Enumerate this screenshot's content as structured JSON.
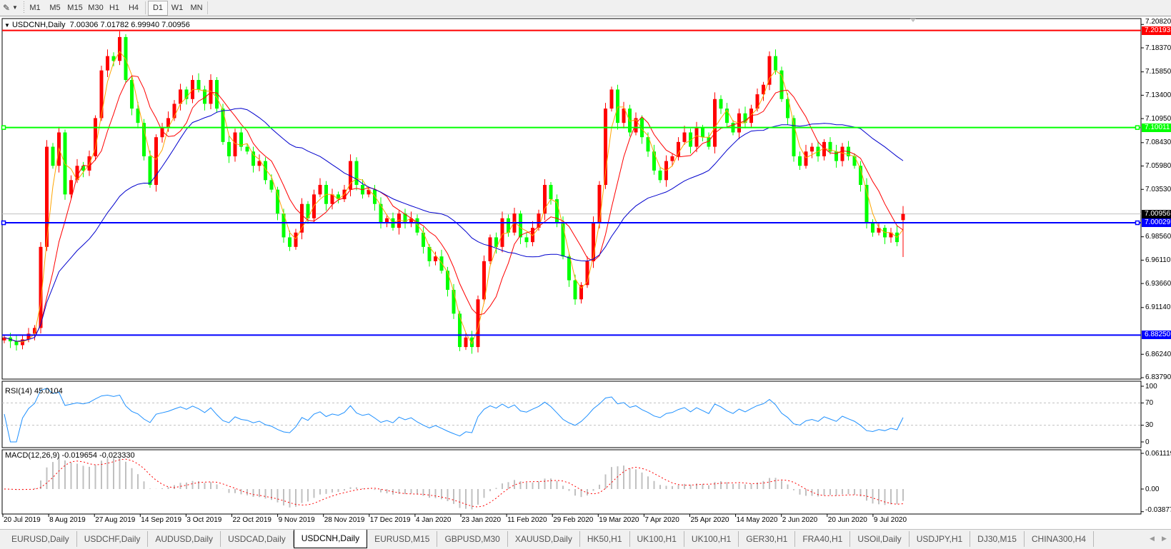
{
  "toolbar": {
    "tools_icon": "line-tools-icon",
    "timeframes": [
      "M1",
      "M5",
      "M15",
      "M30",
      "H1",
      "H4",
      "D1",
      "W1",
      "MN"
    ],
    "active_timeframe": "D1"
  },
  "chart": {
    "header": "USDCNH,Daily  7.00306 7.01782 6.99940 7.00956",
    "rsi_label": "RSI(14) 45.0104",
    "macd_label": "MACD(12,26,9) -0.019654 -0.023330"
  },
  "chart_data": {
    "type": "candlestick",
    "symbol": "USDCNH",
    "timeframe": "Daily",
    "last_bar": {
      "open": 7.00306,
      "high": 7.01782,
      "low": 6.9994,
      "close": 7.00956
    },
    "closes_approx": [
      6.88,
      6.876,
      6.872,
      6.878,
      6.884,
      6.89,
      6.975,
      7.08,
      7.06,
      7.095,
      7.03,
      7.045,
      7.06,
      7.055,
      7.07,
      7.11,
      7.16,
      7.175,
      7.17,
      7.195,
      7.15,
      7.12,
      7.105,
      7.07,
      7.04,
      7.09,
      7.1,
      7.11,
      7.125,
      7.14,
      7.13,
      7.15,
      7.14,
      7.125,
      7.15,
      7.12,
      7.085,
      7.07,
      7.095,
      7.08,
      7.075,
      7.06,
      7.065,
      7.045,
      7.035,
      7.01,
      6.985,
      6.975,
      6.99,
      7.02,
      7.005,
      7.03,
      7.04,
      7.02,
      7.03,
      7.025,
      7.035,
      7.065,
      7.04,
      7.03,
      7.035,
      7.02,
      7.0,
      7.005,
      6.995,
      7.01,
      7.0,
      7.005,
      6.99,
      6.975,
      6.96,
      6.965,
      6.95,
      6.93,
      6.905,
      6.87,
      6.88,
      6.87,
      6.92,
      6.96,
      6.985,
      6.975,
      7.005,
      6.99,
      7.01,
      6.985,
      6.98,
      6.995,
      7.01,
      7.04,
      7.025,
      7.0,
      6.965,
      6.94,
      6.92,
      6.935,
      6.96,
      7.0,
      7.04,
      7.12,
      7.14,
      7.105,
      7.12,
      7.095,
      7.11,
      7.09,
      7.075,
      7.055,
      7.045,
      7.065,
      7.07,
      7.085,
      7.095,
      7.08,
      7.1,
      7.09,
      7.08,
      7.13,
      7.12,
      7.105,
      7.095,
      7.115,
      7.105,
      7.12,
      7.135,
      7.145,
      7.175,
      7.16,
      7.13,
      7.11,
      7.07,
      7.06,
      7.075,
      7.08,
      7.07,
      7.085,
      7.075,
      7.065,
      7.08,
      7.07,
      7.06,
      7.04,
      7.0,
      6.99,
      6.995,
      6.985,
      6.99,
      6.98,
      7.00956
    ],
    "bull_color": "#ff0000",
    "bear_color": "#00ff00",
    "moving_averages": [
      {
        "color": "#ffa500"
      },
      {
        "color": "#ff0000"
      },
      {
        "color": "#0000cd"
      }
    ],
    "ylim": [
      6.8379,
      7.2082
    ],
    "y_ticks": [
      "7.20820",
      "7.18370",
      "7.15850",
      "7.13400",
      "7.10950",
      "7.08430",
      "7.05980",
      "7.03530",
      "6.98560",
      "6.96110",
      "6.93660",
      "6.91140",
      "6.86240",
      "6.83790"
    ],
    "horizontal_levels": [
      {
        "price": "7.20193",
        "color": "#ff0000",
        "handles": false
      },
      {
        "price": "7.10011",
        "color": "#00ff00",
        "handles": true
      },
      {
        "price": "7.00029",
        "color": "#0000ff",
        "handles": true
      },
      {
        "price": "6.88250",
        "color": "#0000ff",
        "handles": false
      }
    ],
    "bid_line": {
      "price": "7.00956",
      "color": "#c0c0c0"
    },
    "x_ticks": [
      "20 Jul 2019",
      "8 Aug 2019",
      "27 Aug 2019",
      "14 Sep 2019",
      "3 Oct 2019",
      "22 Oct 2019",
      "9 Nov 2019",
      "28 Nov 2019",
      "17 Dec 2019",
      "4 Jan 2020",
      "23 Jan 2020",
      "11 Feb 2020",
      "29 Feb 2020",
      "19 Mar 2020",
      "7 Apr 2020",
      "25 Apr 2020",
      "14 May 2020",
      "2 Jun 2020",
      "20 Jun 2020",
      "9 Jul 2020"
    ],
    "rsi": {
      "ticks": [
        "100",
        "70",
        "30",
        "0"
      ],
      "levels": [
        70,
        30
      ],
      "color": "#1e90ff"
    },
    "macd": {
      "ticks": [
        "0.061119",
        "0.00",
        "-0.038777"
      ],
      "histogram_color": "#c0c0c0",
      "signal_color": "#ff0000"
    }
  },
  "tabs": {
    "items": [
      "EURUSD,Daily",
      "USDCHF,Daily",
      "AUDUSD,Daily",
      "USDCAD,Daily",
      "USDCNH,Daily",
      "EURUSD,M15",
      "GBPUSD,M30",
      "XAUUSD,Daily",
      "HK50,H1",
      "UK100,H1",
      "UK100,H1",
      "GER30,H1",
      "FRA40,H1",
      "USOil,Daily",
      "USDJPY,H1",
      "DJ30,M15",
      "CHINA300,H4"
    ],
    "active": "USDCNH,Daily",
    "scroll_left": "◀",
    "scroll_right": "▶"
  }
}
